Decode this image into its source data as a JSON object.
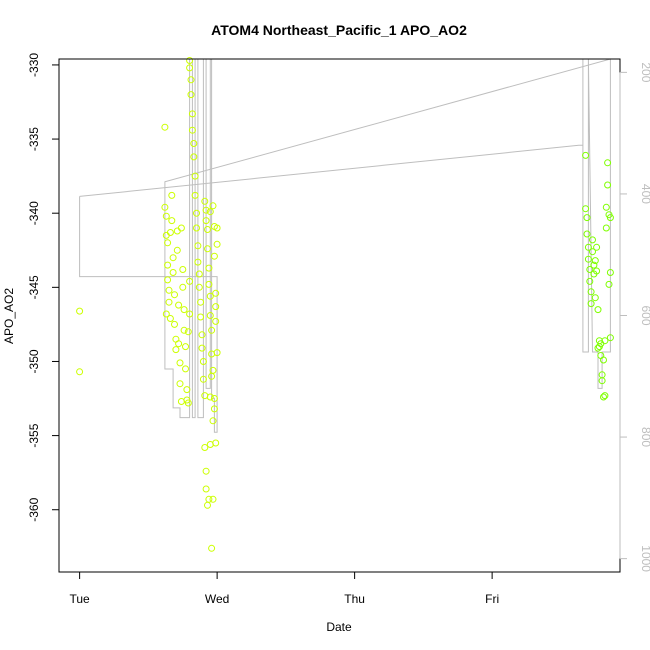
{
  "chart_data": {
    "type": "scatter",
    "title": "ATOM4 Northeast_Pacific_1 APO_AO2",
    "xlabel": "Date",
    "ylabel": "APO_AO2",
    "x_unit": "days after Tue 00:00",
    "x_ticks": [
      {
        "value": 0,
        "label": "Tue"
      },
      {
        "value": 1,
        "label": "Wed"
      },
      {
        "value": 2,
        "label": "Thu"
      },
      {
        "value": 3,
        "label": "Fri"
      }
    ],
    "xlim": [
      -0.15,
      3.93
    ],
    "ylim": [
      -364.2,
      -329.6
    ],
    "y_ticks": [
      -330,
      -335,
      -340,
      -345,
      -350,
      -355,
      -360
    ],
    "y2_ticks": [
      200,
      400,
      600,
      800,
      1000
    ],
    "y2lim": [
      178,
      1022
    ],
    "colors": {
      "frame": "#000000",
      "secondary_axis": "#bebebe",
      "altitude_line": "#bebebe",
      "points_early": "#ccff00",
      "points_late": "#7fff00"
    },
    "series": [
      {
        "points": [
          [
            0.0,
            -346.6
          ],
          [
            0.0,
            -350.7
          ],
          [
            0.62,
            -334.2
          ],
          [
            0.62,
            -339.6
          ],
          [
            0.63,
            -340.2
          ],
          [
            0.63,
            -341.5
          ],
          [
            0.64,
            -342.0
          ],
          [
            0.64,
            -343.5
          ],
          [
            0.64,
            -344.5
          ],
          [
            0.65,
            -345.2
          ],
          [
            0.65,
            -346.0
          ],
          [
            0.63,
            -346.8
          ],
          [
            0.66,
            -347.1
          ],
          [
            0.66,
            -341.3
          ],
          [
            0.67,
            -338.8
          ],
          [
            0.67,
            -340.5
          ],
          [
            0.68,
            -343.0
          ],
          [
            0.68,
            -344.0
          ],
          [
            0.69,
            -345.5
          ],
          [
            0.69,
            -347.5
          ],
          [
            0.7,
            -348.5
          ],
          [
            0.7,
            -349.2
          ],
          [
            0.71,
            -342.5
          ],
          [
            0.71,
            -341.2
          ],
          [
            0.72,
            -346.2
          ],
          [
            0.72,
            -348.8
          ],
          [
            0.73,
            -350.1
          ],
          [
            0.73,
            -351.5
          ],
          [
            0.74,
            -352.7
          ],
          [
            0.74,
            -341.0
          ],
          [
            0.75,
            -343.8
          ],
          [
            0.75,
            -345.0
          ],
          [
            0.76,
            -346.5
          ],
          [
            0.76,
            -347.9
          ],
          [
            0.77,
            -349.0
          ],
          [
            0.77,
            -350.5
          ],
          [
            0.78,
            -351.9
          ],
          [
            0.78,
            -352.6
          ],
          [
            0.79,
            -352.8
          ],
          [
            0.79,
            -348.0
          ],
          [
            0.8,
            -346.8
          ],
          [
            0.8,
            -344.6
          ],
          [
            0.8,
            -329.7
          ],
          [
            0.8,
            -330.2
          ],
          [
            0.81,
            -331.0
          ],
          [
            0.81,
            -332.0
          ],
          [
            0.82,
            -333.3
          ],
          [
            0.82,
            -334.4
          ],
          [
            0.83,
            -335.3
          ],
          [
            0.83,
            -336.2
          ],
          [
            0.84,
            -337.5
          ],
          [
            0.84,
            -338.8
          ],
          [
            0.85,
            -340.0
          ],
          [
            0.85,
            -341.0
          ],
          [
            0.86,
            -342.2
          ],
          [
            0.86,
            -343.3
          ],
          [
            0.87,
            -344.1
          ],
          [
            0.87,
            -345.0
          ],
          [
            0.88,
            -346.0
          ],
          [
            0.88,
            -347.0
          ],
          [
            0.89,
            -348.2
          ],
          [
            0.89,
            -349.1
          ],
          [
            0.9,
            -350.0
          ],
          [
            0.9,
            -351.2
          ],
          [
            0.91,
            -352.3
          ],
          [
            0.91,
            -339.2
          ],
          [
            0.92,
            -339.8
          ],
          [
            0.92,
            -340.5
          ],
          [
            0.93,
            -341.1
          ],
          [
            0.93,
            -342.4
          ],
          [
            0.94,
            -343.7
          ],
          [
            0.94,
            -344.8
          ],
          [
            0.95,
            -345.6
          ],
          [
            0.95,
            -346.9
          ],
          [
            0.96,
            -347.9
          ],
          [
            0.96,
            -349.5
          ],
          [
            0.97,
            -350.6
          ],
          [
            0.97,
            -339.5
          ],
          [
            0.98,
            -340.9
          ],
          [
            0.98,
            -342.9
          ],
          [
            0.99,
            -345.4
          ],
          [
            0.99,
            -347.3
          ],
          [
            1.0,
            -349.4
          ],
          [
            1.0,
            -341.0
          ],
          [
            1.0,
            -342.1
          ],
          [
            0.91,
            -355.8
          ],
          [
            0.92,
            -357.4
          ],
          [
            0.92,
            -358.6
          ],
          [
            0.93,
            -359.7
          ],
          [
            0.94,
            -359.3
          ],
          [
            0.95,
            -355.6
          ],
          [
            0.96,
            -362.6
          ],
          [
            0.97,
            -359.3
          ],
          [
            0.97,
            -354.0
          ],
          [
            0.98,
            -353.2
          ],
          [
            0.98,
            -352.5
          ],
          [
            0.99,
            -355.5
          ],
          [
            0.95,
            -352.4
          ],
          [
            0.96,
            -351.0
          ],
          [
            0.99,
            -346.3
          ],
          [
            0.95,
            -339.9
          ]
        ]
      },
      {
        "points": [
          [
            3.68,
            -336.1
          ],
          [
            3.68,
            -339.7
          ],
          [
            3.69,
            -340.3
          ],
          [
            3.69,
            -341.4
          ],
          [
            3.7,
            -342.3
          ],
          [
            3.7,
            -343.1
          ],
          [
            3.71,
            -343.8
          ],
          [
            3.71,
            -344.6
          ],
          [
            3.72,
            -345.3
          ],
          [
            3.72,
            -346.1
          ],
          [
            3.73,
            -342.6
          ],
          [
            3.73,
            -341.8
          ],
          [
            3.74,
            -343.5
          ],
          [
            3.74,
            -344.1
          ],
          [
            3.75,
            -343.2
          ],
          [
            3.75,
            -345.7
          ],
          [
            3.76,
            -342.3
          ],
          [
            3.76,
            -343.9
          ],
          [
            3.77,
            -346.5
          ],
          [
            3.77,
            -349.1
          ],
          [
            3.78,
            -348.6
          ],
          [
            3.78,
            -349.0
          ],
          [
            3.79,
            -349.6
          ],
          [
            3.79,
            -348.8
          ],
          [
            3.8,
            -350.9
          ],
          [
            3.8,
            -351.3
          ],
          [
            3.81,
            -352.4
          ],
          [
            3.81,
            -349.9
          ],
          [
            3.82,
            -352.3
          ],
          [
            3.82,
            -348.6
          ],
          [
            3.83,
            -341.0
          ],
          [
            3.83,
            -339.6
          ],
          [
            3.84,
            -338.1
          ],
          [
            3.84,
            -336.6
          ],
          [
            3.85,
            -340.1
          ],
          [
            3.85,
            -344.8
          ],
          [
            3.86,
            -348.4
          ],
          [
            3.86,
            -344.0
          ],
          [
            3.86,
            -340.3
          ]
        ]
      }
    ],
    "altitude_line": [
      [
        0.0,
        404
      ],
      [
        3.63,
        320
      ],
      [
        3.66,
        320
      ],
      [
        3.66,
        176
      ],
      [
        3.66,
        660
      ],
      [
        3.7,
        660
      ],
      [
        3.7,
        176
      ],
      [
        3.73,
        660
      ],
      [
        3.77,
        660
      ],
      [
        3.77,
        720
      ],
      [
        3.8,
        720
      ],
      [
        3.8,
        660
      ],
      [
        3.86,
        660
      ],
      [
        3.86,
        176
      ],
      [
        0.62,
        380
      ],
      [
        0.62,
        688
      ],
      [
        0.68,
        688
      ],
      [
        0.68,
        752
      ],
      [
        0.73,
        752
      ],
      [
        0.73,
        768
      ],
      [
        0.8,
        768
      ],
      [
        0.8,
        176
      ],
      [
        0.82,
        176
      ],
      [
        0.82,
        768
      ],
      [
        0.84,
        768
      ],
      [
        0.84,
        176
      ],
      [
        0.86,
        176
      ],
      [
        0.86,
        768
      ],
      [
        0.9,
        768
      ],
      [
        0.9,
        176
      ],
      [
        0.92,
        176
      ],
      [
        0.92,
        720
      ],
      [
        0.95,
        720
      ],
      [
        0.95,
        176
      ],
      [
        0.96,
        176
      ],
      [
        0.96,
        736
      ],
      [
        0.98,
        736
      ],
      [
        0.98,
        792
      ],
      [
        1.0,
        792
      ],
      [
        1.0,
        536
      ],
      [
        0.0,
        536
      ],
      [
        0.0,
        404
      ]
    ]
  }
}
